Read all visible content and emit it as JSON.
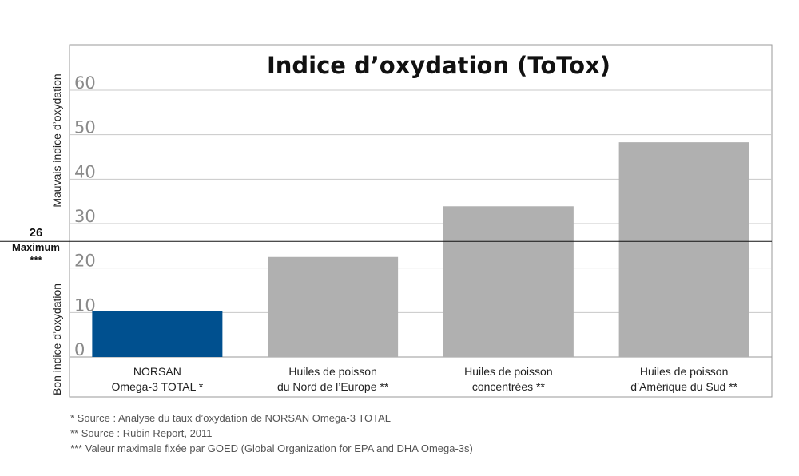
{
  "chart_data": {
    "type": "bar",
    "title": "Indice d’oxydation (ToTox)",
    "categories": [
      [
        "NORSAN",
        "Omega-3 TOTAL *"
      ],
      [
        "Huiles de poisson",
        "du Nord de l’Europe **"
      ],
      [
        "Huiles de poisson",
        "concentrées **"
      ],
      [
        "Huiles de poisson",
        "d’Amérique du Sud **"
      ]
    ],
    "values": [
      10.3,
      22.5,
      33.9,
      48.3
    ],
    "colors": [
      "#00508f",
      "#b0b0b0",
      "#b0b0b0",
      "#b0b0b0"
    ],
    "ylim": [
      0,
      60
    ],
    "yticks": [
      "0",
      "10",
      "20",
      "30",
      "40",
      "50",
      "60"
    ],
    "grid": true,
    "ylabel_top": "Mauvais indice d’oxydation",
    "ylabel_bottom": "Bon indice d’oxydation",
    "reference_line": {
      "value": 26,
      "label": [
        "26",
        "Maximum",
        "***"
      ]
    }
  },
  "footnotes": [
    "*    Source : Analyse du taux d’oxydation de NORSAN Omega-3 TOTAL",
    "**  Source : Rubin Report, 2011",
    "*** Valeur maximale fixée par GOED (Global Organization for EPA and DHA Omega-3s)"
  ]
}
